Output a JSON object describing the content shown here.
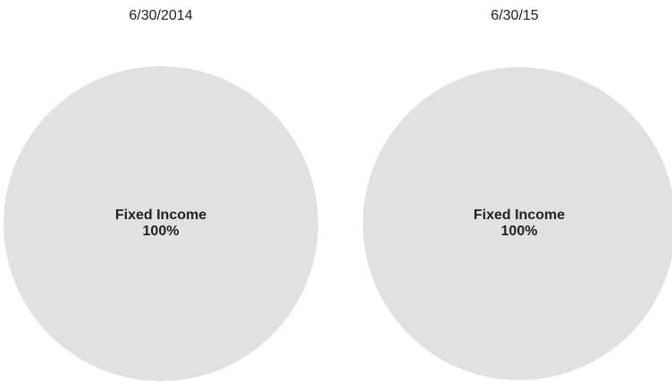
{
  "chart_data": [
    {
      "type": "pie",
      "title": "6/30/2014",
      "categories": [
        "Fixed Income"
      ],
      "values": [
        100
      ],
      "value_labels": [
        "100%"
      ],
      "colors": [
        "#e1e1e2"
      ]
    },
    {
      "type": "pie",
      "title": "6/30/15",
      "categories": [
        "Fixed Income"
      ],
      "values": [
        100
      ],
      "value_labels": [
        "100%"
      ],
      "colors": [
        "#e1e1e2"
      ]
    }
  ]
}
